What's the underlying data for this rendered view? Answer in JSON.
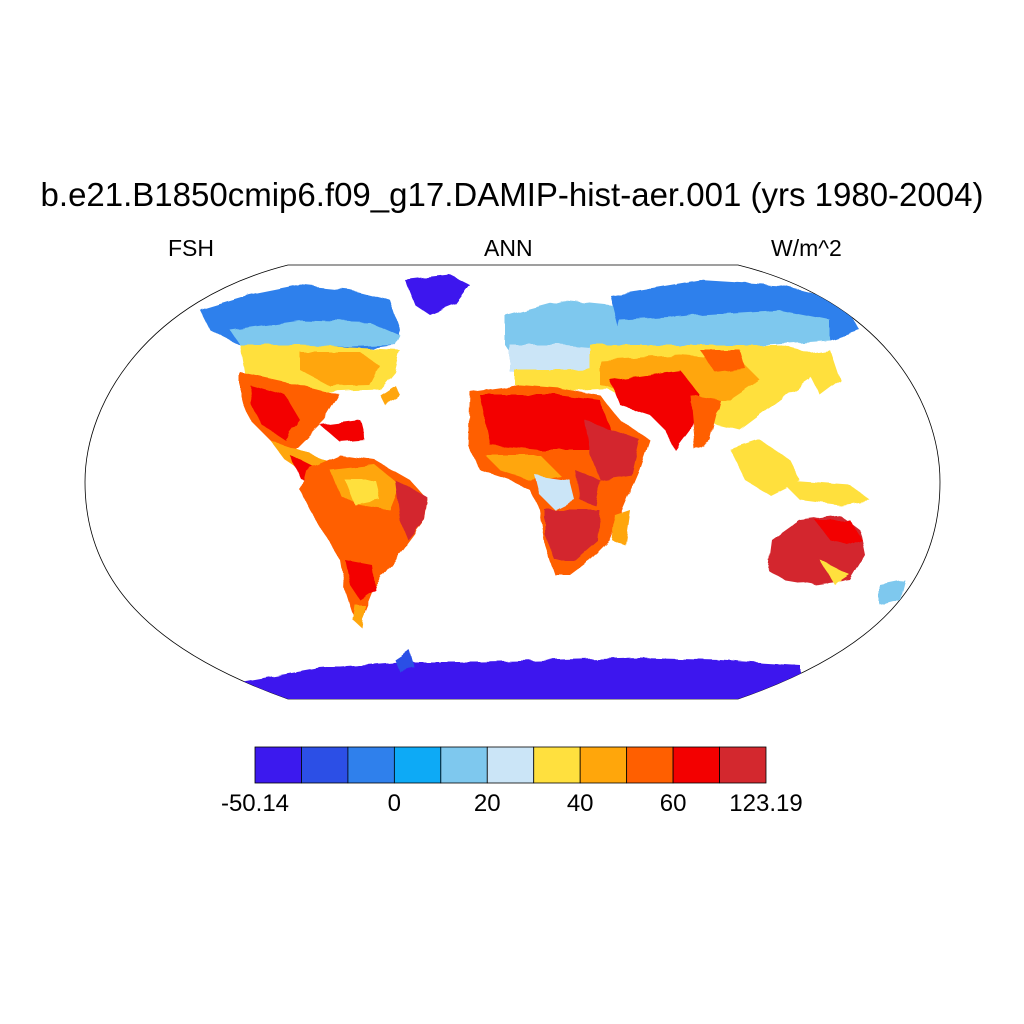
{
  "title": "b.e21.B1850cmip6.f09_g17.DAMIP-hist-aer.001 (yrs 1980-2004)",
  "subtitle_left": "FSH",
  "subtitle_center": "ANN",
  "subtitle_right": "W/m^2",
  "projection": "Robinson",
  "colorbar": {
    "colors": [
      "#3c19ee",
      "#2c4fe6",
      "#2f80ec",
      "#0daaf6",
      "#7ec8ee",
      "#cbe5f7",
      "#ffe03e",
      "#ffa60b",
      "#ff5f00",
      "#f30000",
      "#d3282e"
    ],
    "labels": [
      {
        "text": "-50.14",
        "edge": 0
      },
      {
        "text": "0",
        "edge": 3
      },
      {
        "text": "20",
        "edge": 5
      },
      {
        "text": "40",
        "edge": 7
      },
      {
        "text": "60",
        "edge": 9
      },
      {
        "text": "123.19",
        "edge": 11
      }
    ]
  }
}
